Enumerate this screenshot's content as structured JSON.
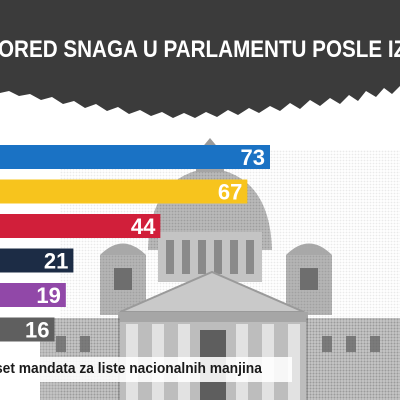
{
  "header": {
    "title": "ORED SNAGA U PARLAMENTU POSLE IZBORA",
    "background_color": "#3b3b3b"
  },
  "footnote": {
    "text": "set mandata za liste nacionalnih manjina"
  },
  "chart_data": {
    "type": "bar",
    "orientation": "horizontal",
    "categories": [
      "",
      "",
      "",
      "",
      "",
      ""
    ],
    "values": [
      73,
      67,
      44,
      21,
      19,
      16
    ],
    "colors": [
      "#1a72c4",
      "#f7c41d",
      "#d11f3a",
      "#1c2c45",
      "#9148a8",
      "#5f5f5f"
    ],
    "data_labels": [
      "73",
      "67",
      "44",
      "21",
      "19",
      "16"
    ],
    "title": "ORED SNAGA U PARLAMENTU POSLE IZBORA",
    "xlabel": "",
    "ylabel": "",
    "xlim": [
      0,
      73
    ],
    "grid": false,
    "legend": "none"
  }
}
